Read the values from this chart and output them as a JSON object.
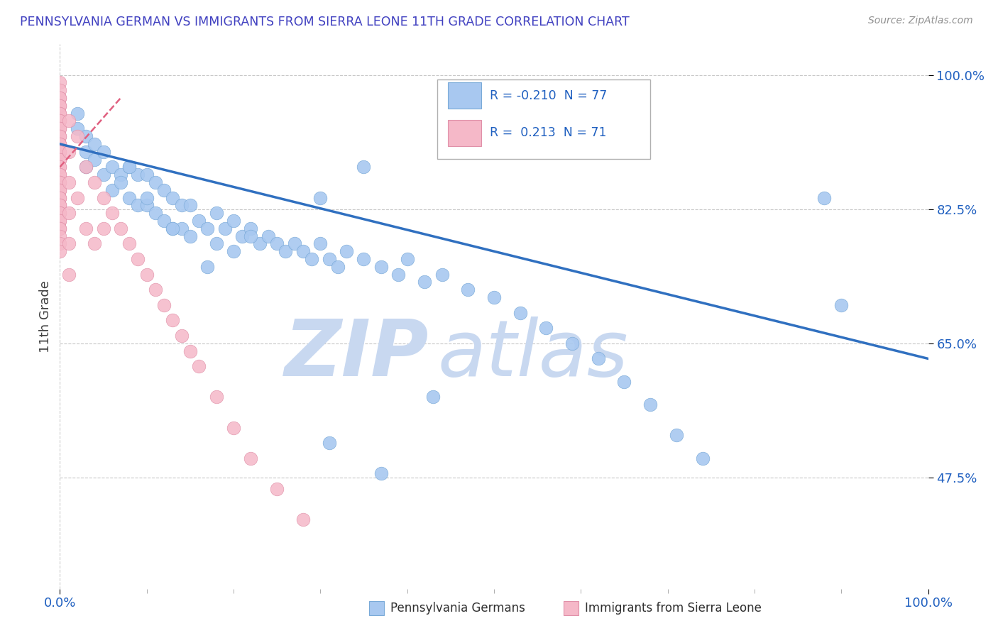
{
  "title": "PENNSYLVANIA GERMAN VS IMMIGRANTS FROM SIERRA LEONE 11TH GRADE CORRELATION CHART",
  "source_text": "Source: ZipAtlas.com",
  "ylabel": "11th Grade",
  "xmin": 0.0,
  "xmax": 1.0,
  "ymin": 0.33,
  "ymax": 1.04,
  "ytick_labels": [
    "100.0%",
    "82.5%",
    "65.0%",
    "47.5%"
  ],
  "ytick_values": [
    1.0,
    0.825,
    0.65,
    0.475
  ],
  "blue_color": "#a8c8f0",
  "blue_edge": "#7aaad8",
  "pink_color": "#f5b8c8",
  "pink_edge": "#e090a8",
  "line_blue": "#3070c0",
  "line_pink": "#e06080",
  "legend_R_blue": "-0.210",
  "legend_N_blue": "77",
  "legend_R_pink": "0.213",
  "legend_N_pink": "71",
  "blue_scatter_x": [
    0.02,
    0.02,
    0.03,
    0.03,
    0.03,
    0.04,
    0.04,
    0.05,
    0.05,
    0.06,
    0.06,
    0.07,
    0.08,
    0.08,
    0.09,
    0.09,
    0.1,
    0.1,
    0.11,
    0.11,
    0.12,
    0.12,
    0.13,
    0.13,
    0.14,
    0.14,
    0.15,
    0.15,
    0.16,
    0.17,
    0.18,
    0.18,
    0.19,
    0.2,
    0.2,
    0.21,
    0.22,
    0.23,
    0.24,
    0.25,
    0.26,
    0.27,
    0.28,
    0.29,
    0.3,
    0.31,
    0.32,
    0.33,
    0.35,
    0.37,
    0.39,
    0.4,
    0.42,
    0.44,
    0.47,
    0.5,
    0.53,
    0.56,
    0.59,
    0.62,
    0.65,
    0.68,
    0.71,
    0.74,
    0.3,
    0.22,
    0.17,
    0.13,
    0.1,
    0.08,
    0.07,
    0.31,
    0.37,
    0.43,
    0.88,
    0.9,
    0.35
  ],
  "blue_scatter_y": [
    0.95,
    0.93,
    0.92,
    0.9,
    0.88,
    0.91,
    0.89,
    0.9,
    0.87,
    0.88,
    0.85,
    0.87,
    0.88,
    0.84,
    0.87,
    0.83,
    0.87,
    0.83,
    0.86,
    0.82,
    0.85,
    0.81,
    0.84,
    0.8,
    0.83,
    0.8,
    0.83,
    0.79,
    0.81,
    0.8,
    0.82,
    0.78,
    0.8,
    0.81,
    0.77,
    0.79,
    0.8,
    0.78,
    0.79,
    0.78,
    0.77,
    0.78,
    0.77,
    0.76,
    0.78,
    0.76,
    0.75,
    0.77,
    0.76,
    0.75,
    0.74,
    0.76,
    0.73,
    0.74,
    0.72,
    0.71,
    0.69,
    0.67,
    0.65,
    0.63,
    0.6,
    0.57,
    0.53,
    0.5,
    0.84,
    0.79,
    0.75,
    0.8,
    0.84,
    0.88,
    0.86,
    0.52,
    0.48,
    0.58,
    0.84,
    0.7,
    0.88
  ],
  "pink_scatter_x": [
    0.0,
    0.0,
    0.0,
    0.0,
    0.0,
    0.0,
    0.0,
    0.0,
    0.0,
    0.0,
    0.0,
    0.0,
    0.0,
    0.0,
    0.0,
    0.0,
    0.0,
    0.0,
    0.0,
    0.0,
    0.0,
    0.0,
    0.0,
    0.0,
    0.0,
    0.0,
    0.0,
    0.0,
    0.0,
    0.0,
    0.0,
    0.0,
    0.0,
    0.0,
    0.0,
    0.0,
    0.0,
    0.0,
    0.0,
    0.0,
    0.0,
    0.01,
    0.01,
    0.01,
    0.01,
    0.01,
    0.01,
    0.02,
    0.02,
    0.03,
    0.03,
    0.04,
    0.04,
    0.05,
    0.06,
    0.07,
    0.08,
    0.09,
    0.1,
    0.11,
    0.12,
    0.13,
    0.14,
    0.15,
    0.16,
    0.18,
    0.2,
    0.22,
    0.25,
    0.28,
    0.05
  ],
  "pink_scatter_y": [
    0.99,
    0.98,
    0.97,
    0.97,
    0.96,
    0.96,
    0.95,
    0.95,
    0.94,
    0.94,
    0.93,
    0.93,
    0.92,
    0.92,
    0.91,
    0.91,
    0.9,
    0.9,
    0.89,
    0.89,
    0.88,
    0.88,
    0.87,
    0.87,
    0.86,
    0.86,
    0.85,
    0.85,
    0.84,
    0.84,
    0.83,
    0.83,
    0.82,
    0.82,
    0.81,
    0.81,
    0.8,
    0.8,
    0.79,
    0.78,
    0.77,
    0.94,
    0.9,
    0.86,
    0.82,
    0.78,
    0.74,
    0.92,
    0.84,
    0.88,
    0.8,
    0.86,
    0.78,
    0.84,
    0.82,
    0.8,
    0.78,
    0.76,
    0.74,
    0.72,
    0.7,
    0.68,
    0.66,
    0.64,
    0.62,
    0.58,
    0.54,
    0.5,
    0.46,
    0.42,
    0.8
  ],
  "blue_line_x": [
    0.0,
    1.0
  ],
  "blue_line_y": [
    0.91,
    0.63
  ],
  "pink_line_x": [
    0.0,
    0.07
  ],
  "pink_line_y": [
    0.88,
    0.97
  ],
  "grid_color": "#c8c8c8",
  "bg_color": "#ffffff",
  "title_color": "#4040c0",
  "source_color": "#909090",
  "watermark_text": "ZIP",
  "watermark_text2": "atlas",
  "watermark_color": "#c8d8f0"
}
